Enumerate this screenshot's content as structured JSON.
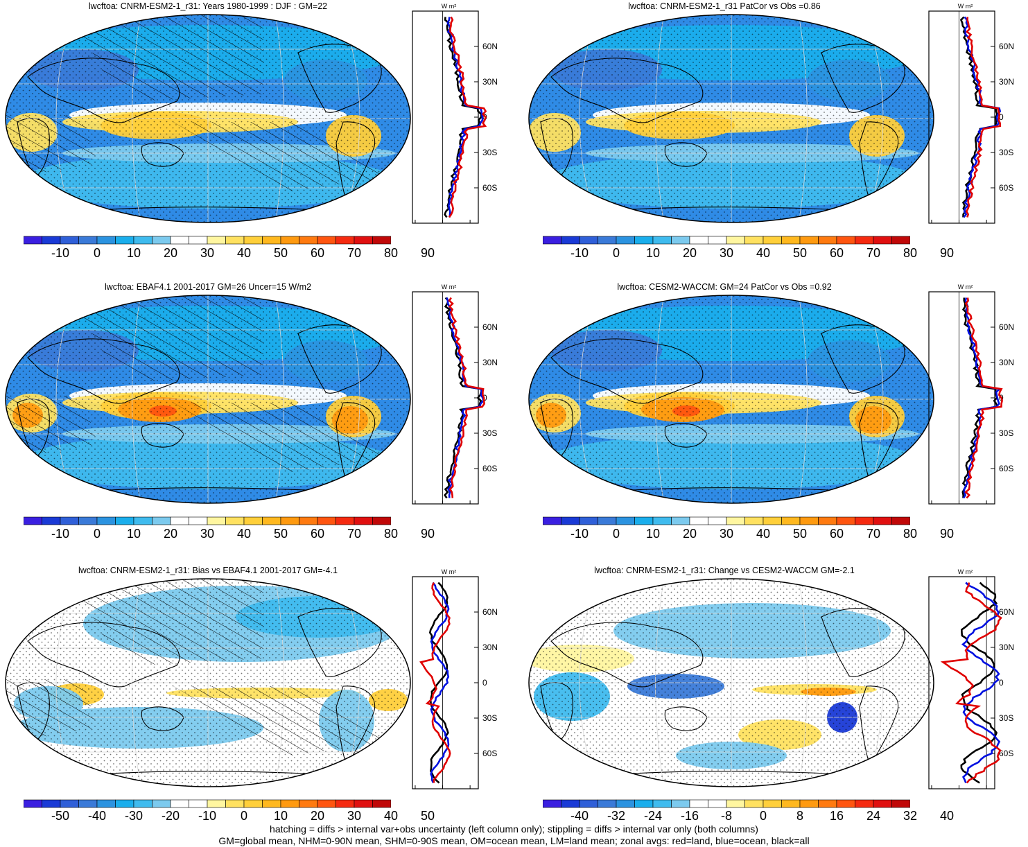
{
  "panels": [
    {
      "title": "lwcftoa: CNRM-ESM2-1_r31: Years 1980-1999 : DJF : GM=22",
      "colorbar": [
        "-10",
        "0",
        "10",
        "20",
        "30",
        "40",
        "50",
        "60",
        "70",
        "80",
        "90"
      ],
      "zonal_ticks_x": [
        "-40",
        "0",
        "40"
      ],
      "zonal_unit": "W m²",
      "lat_labels": [
        "60N",
        "30N",
        "0",
        "30S",
        "60S"
      ],
      "colorbar_colors": [
        "#3a1fe0",
        "#1a3ad6",
        "#2f5fd8",
        "#3a7ad8",
        "#2b93e0",
        "#1aaeec",
        "#3fbbee",
        "#7ccaee",
        "#ffffff",
        "#ffffff",
        "#fff6a0",
        "#ffe160",
        "#ffcf3a",
        "#ffb81f",
        "#ff9a10",
        "#ff7a10",
        "#ff5510",
        "#f52a10",
        "#e01010",
        "#c00808"
      ]
    },
    {
      "title": "lwcftoa: CNRM-ESM2-1_r31 PatCor vs Obs =0.86",
      "colorbar": [
        "-10",
        "0",
        "10",
        "20",
        "30",
        "40",
        "50",
        "60",
        "70",
        "80",
        "90"
      ],
      "zonal_ticks_x": [
        "-40",
        "0",
        "40"
      ],
      "zonal_unit": "W m²",
      "lat_labels": [
        "60N",
        "30N",
        "0",
        "30S",
        "60S"
      ]
    },
    {
      "title": "lwcftoa: EBAF4.1 2001-2017 GM=26 Uncer=15 W/m2",
      "colorbar": [
        "-10",
        "0",
        "10",
        "20",
        "30",
        "40",
        "50",
        "60",
        "70",
        "80",
        "90"
      ],
      "zonal_ticks_x": [
        "-40",
        "0",
        "40"
      ],
      "zonal_unit": "W m²",
      "lat_labels": [
        "60N",
        "30N",
        "0",
        "30S",
        "60S"
      ]
    },
    {
      "title": "lwcftoa: CESM2-WACCM: GM=24 PatCor vs Obs =0.92",
      "colorbar": [
        "-10",
        "0",
        "10",
        "20",
        "30",
        "40",
        "50",
        "60",
        "70",
        "80",
        "90"
      ],
      "zonal_ticks_x": [
        "-40",
        "0",
        "40"
      ],
      "zonal_unit": "W m²",
      "lat_labels": [
        "60N",
        "30N",
        "0",
        "30S",
        "60S"
      ]
    },
    {
      "title": "lwcftoa: CNRM-ESM2-1_r31: Bias vs EBAF4.1 2001-2017 GM=-4.1",
      "colorbar": [
        "-50",
        "-40",
        "-30",
        "-20",
        "-10",
        "0",
        "10",
        "20",
        "30",
        "40",
        "50"
      ],
      "zonal_ticks_x": [
        "-20",
        "0",
        "20"
      ],
      "zonal_unit": "W m²",
      "lat_labels": [
        "60N",
        "30N",
        "0",
        "30S",
        "60S"
      ]
    },
    {
      "title": "lwcftoa: CNRM-ESM2-1_r31: Change vs CESM2-WACCM GM=-2.1",
      "colorbar": [
        "-40",
        "-32",
        "-24",
        "-16",
        "-8",
        "0",
        "8",
        "16",
        "24",
        "32",
        "40"
      ],
      "zonal_ticks_x": [
        "-20",
        "-10",
        "0"
      ],
      "zonal_unit": "W m²",
      "lat_labels": [
        "60N",
        "30N",
        "0",
        "30S",
        "60S"
      ]
    }
  ],
  "footer": {
    "line1": "hatching = diffs > internal var+obs uncertainty (left column only); stippling = diffs > internal var only (both columns)",
    "line2": "GM=global mean, NHM=0-90N mean, SHM=0-90S mean, OM=ocean mean, LM=land mean; zonal avgs: red=land, blue=ocean, black=all"
  },
  "colors": {
    "land": "#e00000",
    "ocean": "#0010e0",
    "all": "#000000"
  }
}
